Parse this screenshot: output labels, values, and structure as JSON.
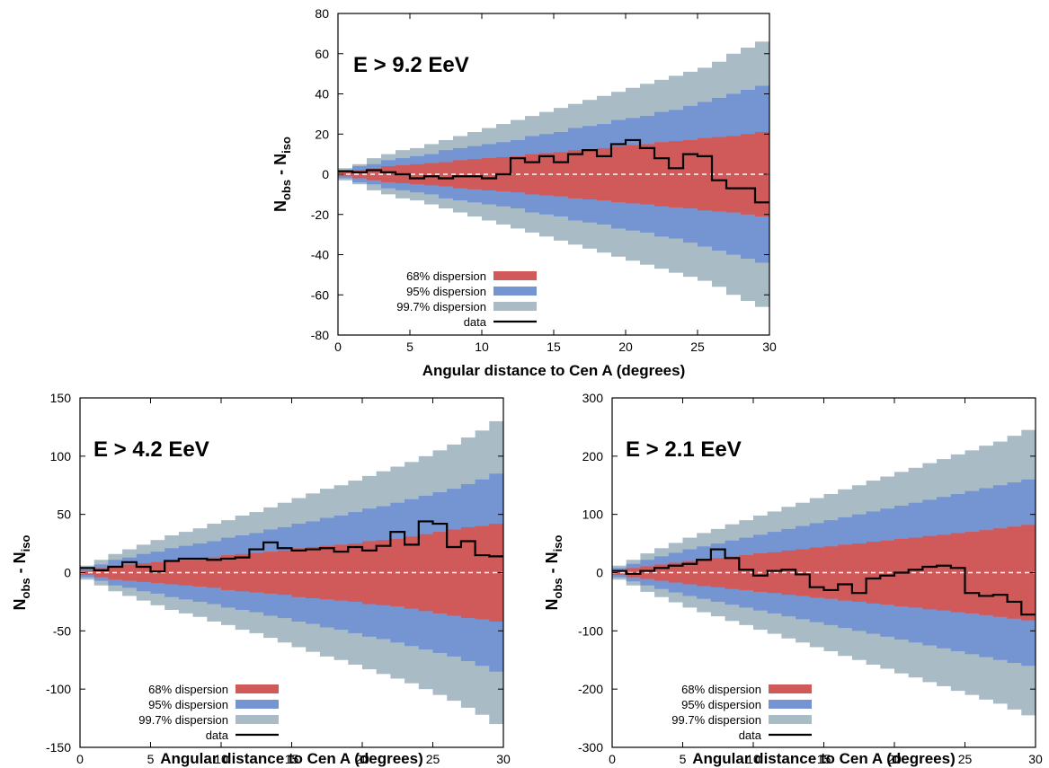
{
  "colors": {
    "band68": "#d05a5a",
    "band95": "#7495d2",
    "band997": "#a9bbc4",
    "data": "#000000",
    "zero_line": "#ffffff"
  },
  "chart_data": [
    {
      "type": "area",
      "title": "E > 9.2 EeV",
      "xlabel": "Angular distance to Cen A (degrees)",
      "ylabel": {
        "main": "N",
        "sub1": "obs",
        "mid": " - N",
        "sub2": "iso"
      },
      "xlim": [
        0,
        30
      ],
      "ylim": [
        -80,
        80
      ],
      "xticks": [
        0,
        5,
        10,
        15,
        20,
        25,
        30
      ],
      "yticks": [
        -80,
        -60,
        -40,
        -20,
        0,
        20,
        40,
        60,
        80
      ],
      "grid": false,
      "legend_position": "bottom-left",
      "legend": [
        "68% dispersion",
        "95% dispersion",
        "99.7% dispersion",
        "data"
      ],
      "bins_x": [
        0,
        1,
        2,
        3,
        4,
        5,
        6,
        7,
        8,
        9,
        10,
        11,
        12,
        13,
        14,
        15,
        16,
        17,
        18,
        19,
        20,
        21,
        22,
        23,
        24,
        25,
        26,
        27,
        28,
        29
      ],
      "bin_width": 1,
      "band68_halfwidth": [
        1,
        2,
        3,
        4,
        4.5,
        5,
        5.5,
        6,
        7,
        7.5,
        8,
        8.5,
        9,
        10,
        10.5,
        11,
        12,
        12.5,
        13,
        14,
        14.5,
        15,
        16,
        16.5,
        17,
        18,
        18.5,
        19,
        20,
        21
      ],
      "band95_halfwidth": [
        2,
        4,
        5,
        7,
        8,
        9,
        10,
        12,
        13,
        14,
        15,
        16,
        17,
        19,
        20,
        21,
        23,
        24,
        25,
        27,
        28,
        29,
        31,
        32,
        34,
        36,
        38,
        40,
        42,
        44
      ],
      "band997_halfwidth": [
        3,
        5,
        8,
        10,
        12,
        13,
        15,
        17,
        19,
        21,
        23,
        25,
        27,
        29,
        31,
        33,
        35,
        37,
        39,
        41,
        43,
        45,
        47,
        49,
        51,
        53,
        56,
        60,
        63,
        66
      ],
      "data_values": [
        1.5,
        1,
        2,
        1,
        0,
        -2,
        -1,
        -2,
        -1,
        -1,
        -2,
        0,
        8,
        6,
        9,
        6,
        10,
        12,
        9,
        15,
        17,
        13,
        8,
        3,
        10,
        9,
        -3,
        -7,
        -7,
        -14
      ]
    },
    {
      "type": "area",
      "title": "E > 4.2 EeV",
      "xlabel": "Angular distance to Cen A (degrees)",
      "ylabel": {
        "main": "N",
        "sub1": "obs",
        "mid": " - N",
        "sub2": "iso"
      },
      "xlim": [
        0,
        30
      ],
      "ylim": [
        -150,
        150
      ],
      "xticks": [
        0,
        5,
        10,
        15,
        20,
        25,
        30
      ],
      "yticks": [
        -150,
        -100,
        -50,
        0,
        50,
        100,
        150
      ],
      "grid": false,
      "legend_position": "bottom-left",
      "legend": [
        "68% dispersion",
        "95% dispersion",
        "99.7% dispersion",
        "data"
      ],
      "bins_x": [
        0,
        1,
        2,
        3,
        4,
        5,
        6,
        7,
        8,
        9,
        10,
        11,
        12,
        13,
        14,
        15,
        16,
        17,
        18,
        19,
        20,
        21,
        22,
        23,
        24,
        25,
        26,
        27,
        28,
        29
      ],
      "bin_width": 1,
      "band68_halfwidth": [
        2,
        4,
        6,
        7,
        8,
        9,
        10,
        11,
        12,
        13,
        15,
        16,
        17,
        18,
        19,
        21,
        22,
        23,
        24,
        25,
        27,
        28,
        29,
        31,
        33,
        35,
        37,
        39,
        40,
        42
      ],
      "band95_halfwidth": [
        4,
        7,
        11,
        13,
        16,
        18,
        21,
        23,
        25,
        27,
        30,
        32,
        34,
        37,
        39,
        42,
        44,
        47,
        49,
        52,
        55,
        57,
        60,
        63,
        66,
        69,
        72,
        76,
        80,
        85
      ],
      "band997_halfwidth": [
        6,
        11,
        16,
        20,
        24,
        28,
        32,
        35,
        38,
        42,
        45,
        49,
        52,
        56,
        60,
        64,
        68,
        72,
        75,
        79,
        83,
        87,
        91,
        95,
        100,
        105,
        110,
        116,
        122,
        130
      ],
      "data_values": [
        4,
        2,
        5,
        9,
        5,
        1,
        10,
        12,
        12,
        11,
        12,
        13,
        20,
        26,
        21,
        19,
        20,
        21,
        18,
        22,
        19,
        23,
        35,
        24,
        44,
        42,
        22,
        27,
        15,
        14
      ]
    },
    {
      "type": "area",
      "title": "E > 2.1 EeV",
      "xlabel": "Angular distance to Cen A (degrees)",
      "ylabel": {
        "main": "N",
        "sub1": "obs",
        "mid": " - N",
        "sub2": "iso"
      },
      "xlim": [
        0,
        30
      ],
      "ylim": [
        -300,
        300
      ],
      "xticks": [
        0,
        5,
        10,
        15,
        20,
        25,
        30
      ],
      "yticks": [
        -300,
        -200,
        -100,
        0,
        100,
        200,
        300
      ],
      "grid": false,
      "legend_position": "bottom-left",
      "legend": [
        "68% dispersion",
        "95% dispersion",
        "99.7% dispersion",
        "data"
      ],
      "bins_x": [
        0,
        1,
        2,
        3,
        4,
        5,
        6,
        7,
        8,
        9,
        10,
        11,
        12,
        13,
        14,
        15,
        16,
        17,
        18,
        19,
        20,
        21,
        22,
        23,
        24,
        25,
        26,
        27,
        28,
        29
      ],
      "bin_width": 1,
      "band68_halfwidth": [
        4,
        8,
        11,
        14,
        17,
        20,
        23,
        25,
        28,
        30,
        33,
        35,
        38,
        40,
        43,
        45,
        48,
        50,
        53,
        55,
        58,
        60,
        63,
        65,
        68,
        70,
        73,
        76,
        79,
        82
      ],
      "band95_halfwidth": [
        8,
        15,
        22,
        28,
        34,
        40,
        45,
        50,
        55,
        60,
        65,
        70,
        75,
        80,
        85,
        90,
        95,
        100,
        105,
        110,
        115,
        120,
        125,
        130,
        135,
        140,
        145,
        150,
        155,
        160
      ],
      "band997_halfwidth": [
        12,
        22,
        33,
        42,
        51,
        60,
        68,
        75,
        83,
        90,
        98,
        105,
        113,
        120,
        128,
        135,
        143,
        150,
        158,
        165,
        173,
        180,
        188,
        195,
        203,
        210,
        218,
        225,
        235,
        245
      ],
      "data_values": [
        3,
        -2,
        3,
        8,
        12,
        15,
        22,
        40,
        25,
        5,
        -5,
        3,
        5,
        -3,
        -25,
        -30,
        -20,
        -35,
        -10,
        -5,
        0,
        5,
        10,
        12,
        8,
        -35,
        -40,
        -38,
        -50,
        -72
      ]
    }
  ]
}
